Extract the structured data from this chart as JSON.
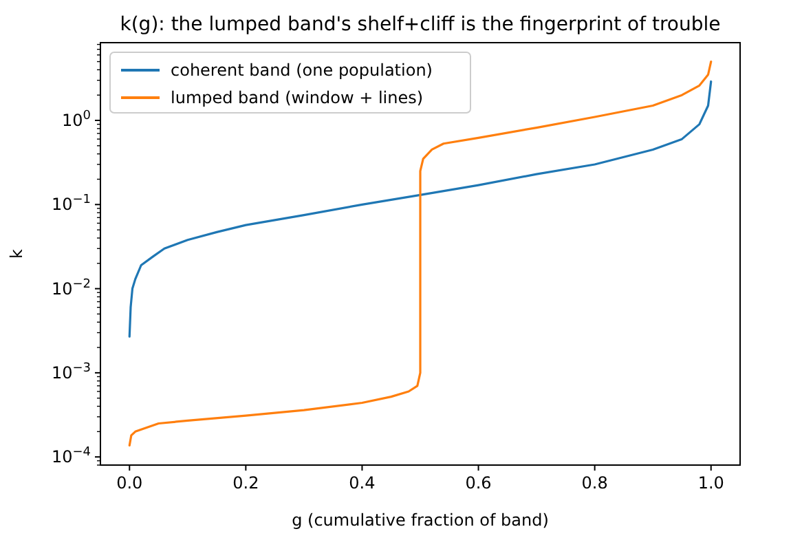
{
  "chart_data": {
    "type": "line",
    "title": "k(g): the lumped band's shelf+cliff is the fingerprint of trouble",
    "xlabel": "g (cumulative fraction of band)",
    "ylabel": "k",
    "log": "y",
    "legend": "top left",
    "grid": false,
    "xlim": [
      -0.05,
      1.05
    ],
    "xticks": [
      {
        "value": 0,
        "label": "0.0"
      },
      {
        "value": 0.2,
        "label": "0.2"
      },
      {
        "value": 0.4,
        "label": "0.4"
      },
      {
        "value": 0.6,
        "label": "0.6"
      },
      {
        "value": 0.8,
        "label": "0.8"
      },
      {
        "value": 1,
        "label": "1.0"
      }
    ],
    "ylim": [
      8e-05,
      8.4
    ],
    "yticks": [
      {
        "value": 8e-05,
        "label": null
      },
      {
        "value": 9e-05,
        "label": null
      },
      {
        "value": 0.0001,
        "label": "10$^{−4}$"
      },
      {
        "value": 0.0002,
        "label": null
      },
      {
        "value": 0.0003,
        "label": null
      },
      {
        "value": 0.0004,
        "label": null
      },
      {
        "value": 0.0005,
        "label": null
      },
      {
        "value": 0.0006,
        "label": null
      },
      {
        "value": 0.0007,
        "label": null
      },
      {
        "value": 0.0008,
        "label": null
      },
      {
        "value": 0.0009,
        "label": null
      },
      {
        "value": 0.001,
        "label": "10$^{−3}$"
      },
      {
        "value": 0.002,
        "label": null
      },
      {
        "value": 0.003,
        "label": null
      },
      {
        "value": 0.004,
        "label": null
      },
      {
        "value": 0.005,
        "label": null
      },
      {
        "value": 0.006,
        "label": null
      },
      {
        "value": 0.007,
        "label": null
      },
      {
        "value": 0.008,
        "label": null
      },
      {
        "value": 0.009,
        "label": null
      },
      {
        "value": 0.01,
        "label": "10$^{−2}$"
      },
      {
        "value": 0.02,
        "label": null
      },
      {
        "value": 0.03,
        "label": null
      },
      {
        "value": 0.04,
        "label": null
      },
      {
        "value": 0.05,
        "label": null
      },
      {
        "value": 0.06,
        "label": null
      },
      {
        "value": 0.07,
        "label": null
      },
      {
        "value": 0.08,
        "label": null
      },
      {
        "value": 0.09,
        "label": null
      },
      {
        "value": 0.1,
        "label": "10$^{−1}$"
      },
      {
        "value": 0.2,
        "label": null
      },
      {
        "value": 0.3,
        "label": null
      },
      {
        "value": 0.4,
        "label": null
      },
      {
        "value": 0.5,
        "label": null
      },
      {
        "value": 0.6,
        "label": null
      },
      {
        "value": 0.7,
        "label": null
      },
      {
        "value": 0.8,
        "label": null
      },
      {
        "value": 0.9,
        "label": null
      },
      {
        "value": 1,
        "label": "10$^{0}$"
      },
      {
        "value": 2,
        "label": null
      },
      {
        "value": 3,
        "label": null
      },
      {
        "value": 4,
        "label": null
      },
      {
        "value": 5,
        "label": null
      },
      {
        "value": 6,
        "label": null
      },
      {
        "value": 7,
        "label": null
      },
      {
        "value": 8,
        "label": null
      }
    ],
    "marker": "none",
    "line_style": "solid",
    "series": [
      {
        "name": "coherent band (one population)",
        "color": "#1f77b4",
        "x": [
          0,
          0.002,
          0.005,
          0.01,
          0.02,
          0.04,
          0.06,
          0.1,
          0.15,
          0.2,
          0.3,
          0.4,
          0.5,
          0.6,
          0.7,
          0.8,
          0.9,
          0.95,
          0.98,
          0.995,
          1
        ],
        "values": [
          0.0027,
          0.006,
          0.01,
          0.013,
          0.019,
          0.024,
          0.03,
          0.038,
          0.047,
          0.057,
          0.075,
          0.1,
          0.13,
          0.17,
          0.23,
          0.3,
          0.45,
          0.6,
          0.9,
          1.5,
          2.9
        ]
      },
      {
        "name": "lumped band (window + lines)",
        "color": "#ff7f0e",
        "x": [
          0,
          0.003,
          0.01,
          0.05,
          0.1,
          0.2,
          0.3,
          0.4,
          0.45,
          0.48,
          0.495,
          0.5,
          0.5,
          0.505,
          0.52,
          0.54,
          0.6,
          0.7,
          0.8,
          0.9,
          0.95,
          0.98,
          0.995,
          1
        ],
        "values": [
          0.000137,
          0.00018,
          0.0002,
          0.00025,
          0.00027,
          0.00031,
          0.00036,
          0.00044,
          0.00052,
          0.0006,
          0.0007,
          0.001,
          0.25,
          0.35,
          0.45,
          0.53,
          0.62,
          0.82,
          1.1,
          1.5,
          2,
          2.6,
          3.5,
          5
        ]
      }
    ]
  }
}
